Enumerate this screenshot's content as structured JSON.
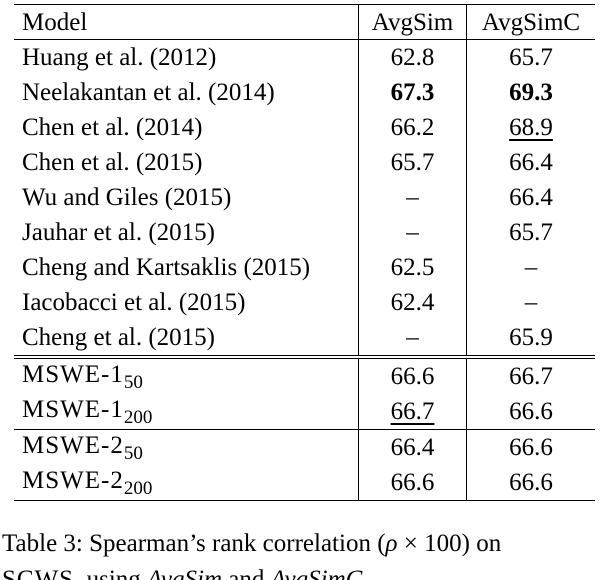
{
  "table": {
    "headers": [
      "Model",
      "AvgSim",
      "AvgSimC"
    ],
    "group_baselines": [
      {
        "model": "Huang et al. (2012)",
        "avgsim": "62.8",
        "avgsimc": "65.7"
      },
      {
        "model": "Neelakantan et al. (2014)",
        "avgsim": "67.3",
        "avgsimc": "69.3",
        "avgsim_style": "bold",
        "avgsimc_style": "bold"
      },
      {
        "model": "Chen et al. (2014)",
        "avgsim": "66.2",
        "avgsimc": "68.9",
        "avgsimc_style": "underline"
      },
      {
        "model": "Chen et al. (2015)",
        "avgsim": "65.7",
        "avgsimc": "66.4"
      },
      {
        "model": "Wu and Giles (2015)",
        "avgsim": "–",
        "avgsimc": "66.4"
      },
      {
        "model": "Jauhar et al. (2015)",
        "avgsim": "–",
        "avgsimc": "65.7"
      },
      {
        "model": "Cheng and Kartsaklis (2015)",
        "avgsim": "62.5",
        "avgsimc": "–"
      },
      {
        "model": "Iacobacci et al. (2015)",
        "avgsim": "62.4",
        "avgsimc": "–"
      },
      {
        "model": "Cheng et al. (2015)",
        "avgsim": "–",
        "avgsimc": "65.9"
      }
    ],
    "group_mswe1": [
      {
        "model": "MSWE-1",
        "subscript": "50",
        "avgsim": "66.6",
        "avgsimc": "66.7"
      },
      {
        "model": "MSWE-1",
        "subscript": "200",
        "avgsim": "66.7",
        "avgsimc": "66.6",
        "avgsim_style": "underline"
      }
    ],
    "group_mswe2": [
      {
        "model": "MSWE-2",
        "subscript": "50",
        "avgsim": "66.4",
        "avgsimc": "66.6"
      },
      {
        "model": "MSWE-2",
        "subscript": "200",
        "avgsim": "66.6",
        "avgsimc": "66.6"
      }
    ]
  },
  "caption": {
    "line1_prefix": "Table 3: Spearman’s rank correlation (",
    "line1_rho": "ρ",
    "line1_times": " × ",
    "line1_suffix": "100) on",
    "line2_dataset": "SCWS",
    "line2_mid": ", using ",
    "line2_avgsim": "AvgSim",
    "line2_and": " and ",
    "line2_avgsimc": "AvgSimC",
    "line2_end": "."
  }
}
